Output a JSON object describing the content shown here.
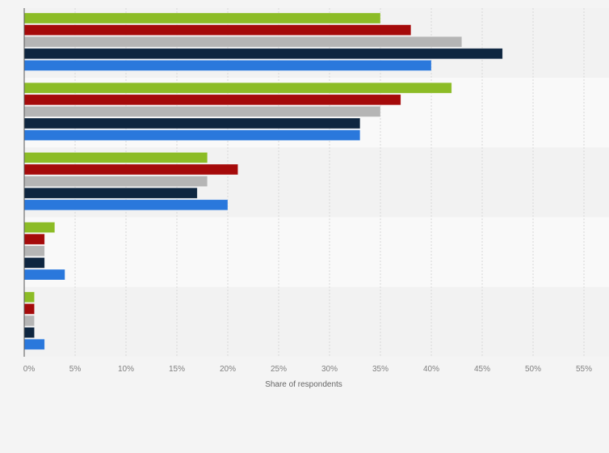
{
  "chart_data": {
    "type": "bar",
    "orientation": "horizontal",
    "title": "",
    "xlabel": "Share of respondents",
    "ylabel": "",
    "xlim": [
      0,
      55
    ],
    "xticks": [
      0,
      5,
      10,
      15,
      20,
      25,
      30,
      35,
      40,
      45,
      50,
      55
    ],
    "xtick_labels": [
      "0%",
      "5%",
      "10%",
      "15%",
      "20%",
      "25%",
      "30%",
      "35%",
      "40%",
      "45%",
      "50%",
      "55%"
    ],
    "grid": true,
    "legend": "none",
    "group_count": 5,
    "series": [
      {
        "color": "#8cbc26",
        "values": [
          35,
          42,
          18,
          3,
          1
        ]
      },
      {
        "color": "#a50a0a",
        "values": [
          38,
          37,
          21,
          2,
          1
        ]
      },
      {
        "color": "#b5b5b5",
        "values": [
          43,
          35,
          18,
          2,
          1
        ]
      },
      {
        "color": "#0e2640",
        "values": [
          47,
          33,
          17,
          2,
          1
        ]
      },
      {
        "color": "#2a78dc",
        "values": [
          40,
          33,
          20,
          4,
          2
        ]
      }
    ]
  }
}
